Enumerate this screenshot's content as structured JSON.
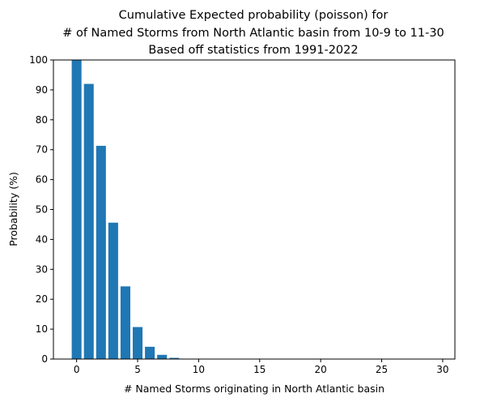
{
  "chart_data": {
    "type": "bar",
    "title": [
      "Cumulative Expected probability (poisson) for",
      "# of Named Storms from North Atlantic basin from 10-9 to 11-30",
      "Based off statistics from 1991-2022"
    ],
    "xlabel": "# Named Storms originating in North Atlantic basin",
    "ylabel": "Probability (%)",
    "x": [
      0,
      1,
      2,
      3,
      4,
      5,
      6,
      7,
      8,
      9,
      10,
      11,
      12,
      13,
      14,
      15,
      16,
      17,
      18,
      19,
      20,
      21,
      22,
      23,
      24,
      25,
      26,
      27,
      28,
      29,
      30
    ],
    "values": [
      100,
      92,
      71.3,
      45.6,
      24.3,
      10.7,
      4.1,
      1.4,
      0.4,
      0.1,
      0.03,
      0.01,
      0,
      0,
      0,
      0,
      0,
      0,
      0,
      0,
      0,
      0,
      0,
      0,
      0,
      0,
      0,
      0,
      0,
      0,
      0
    ],
    "xlim": [
      -1.9,
      31
    ],
    "ylim": [
      0,
      100
    ],
    "xticks": [
      "0",
      "5",
      "10",
      "15",
      "20",
      "25",
      "30"
    ],
    "yticks": [
      "0",
      "10",
      "20",
      "30",
      "40",
      "50",
      "60",
      "70",
      "80",
      "90",
      "100"
    ],
    "bar_color": "#1f77b4",
    "grid": false,
    "legend": "none"
  }
}
